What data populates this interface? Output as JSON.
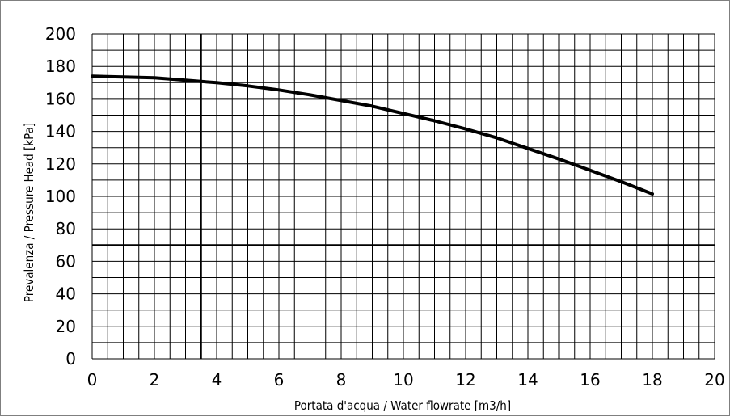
{
  "chart_data": {
    "type": "line",
    "title": "",
    "xlabel": "Portata d'acqua / Water flowrate [m3/h]",
    "ylabel": "Prevalenza / Pressure Head [kPa]",
    "xlim": [
      0,
      20
    ],
    "ylim": [
      0,
      200
    ],
    "x_ticks": [
      0,
      2,
      4,
      6,
      8,
      10,
      12,
      14,
      16,
      18,
      20
    ],
    "y_ticks": [
      0,
      20,
      40,
      60,
      80,
      100,
      120,
      140,
      160,
      180,
      200
    ],
    "x_ticks_labels": [
      "0",
      "2",
      "4",
      "6",
      "8",
      "10",
      "12",
      "14",
      "16",
      "18",
      "20"
    ],
    "y_ticks_labels": [
      "0",
      "20",
      "40",
      "60",
      "80",
      "100",
      "120",
      "140",
      "160",
      "180",
      "200"
    ],
    "minor_grid_x_step": 0.5,
    "minor_grid_y_step": 10,
    "reference_lines": {
      "x": [
        3.5,
        15
      ],
      "y": [
        70,
        160
      ]
    },
    "grid": true,
    "legend": "none",
    "series": [
      {
        "color": "#000000",
        "x": [
          0,
          1,
          2,
          3,
          4,
          5,
          6,
          7,
          8,
          9,
          10,
          11,
          12,
          13,
          14,
          15,
          16,
          17,
          18
        ],
        "y": [
          174,
          173.5,
          173,
          171.5,
          170,
          168,
          165.5,
          162.5,
          159,
          155.5,
          151,
          146.5,
          141.5,
          136,
          129.5,
          123,
          116,
          109,
          101.5
        ]
      }
    ]
  }
}
